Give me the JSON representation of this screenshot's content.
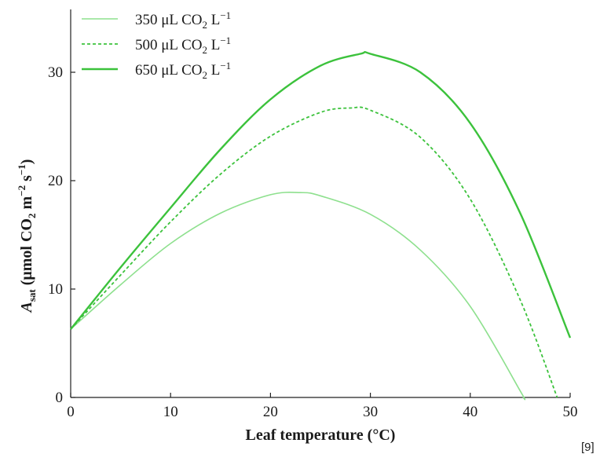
{
  "chart_data": {
    "type": "line",
    "xlabel": "Leaf temperature (°C)",
    "ylabel_main": "A",
    "ylabel_sub": "sat",
    "ylabel_rest_1": " (μmol CO",
    "ylabel_sub2": "2",
    "ylabel_rest_2": " m",
    "ylabel_sup1": "−2",
    "ylabel_rest_3": " s",
    "ylabel_sup2": "−1",
    "ylabel_rest_4": ")",
    "xlim": [
      0,
      50
    ],
    "ylim": [
      0,
      35
    ],
    "xticks": [
      0,
      10,
      20,
      30,
      40,
      50
    ],
    "yticks": [
      0,
      10,
      20,
      30
    ],
    "xtick_labels": [
      "0",
      "10",
      "20",
      "30",
      "40",
      "50"
    ],
    "ytick_labels": [
      "0",
      "10",
      "20",
      "30"
    ],
    "grid": false,
    "legend_position": "top-left",
    "series": [
      {
        "name": "350 μL CO2 L−1",
        "legend_main": "350 μL CO",
        "legend_sub": "2",
        "legend_unit": " L",
        "legend_sup": "−1",
        "style": "solid-thin",
        "color": "#8ee08e",
        "x": [
          0,
          5,
          10,
          15,
          20,
          23,
          25,
          30,
          35,
          40,
          45,
          45.3
        ],
        "y": [
          6.3,
          10.4,
          14.2,
          17.0,
          18.7,
          18.9,
          18.6,
          16.9,
          13.6,
          8.4,
          0.6,
          0
        ]
      },
      {
        "name": "500 μL CO2 L−1",
        "legend_main": "500 μL CO",
        "legend_sub": "2",
        "legend_unit": " L",
        "legend_sup": "−1",
        "style": "dashed",
        "color": "#3cc23c",
        "x": [
          0,
          5,
          10,
          15,
          20,
          25,
          28,
          30,
          35,
          40,
          45,
          48.7
        ],
        "y": [
          6.3,
          11.3,
          16.2,
          20.6,
          24.1,
          26.3,
          26.7,
          26.5,
          24.0,
          18.3,
          9.0,
          0
        ]
      },
      {
        "name": "650 μL CO2 L−1",
        "legend_main": "650 μL CO",
        "legend_sub": "2",
        "legend_unit": " L",
        "legend_sup": "−1",
        "style": "solid-thick",
        "color": "#3cc23c",
        "x": [
          0,
          5,
          10,
          15,
          20,
          25,
          29,
          30,
          35,
          40,
          45,
          50
        ],
        "y": [
          6.3,
          12.0,
          17.5,
          22.9,
          27.5,
          30.6,
          31.7,
          31.7,
          30.0,
          25.3,
          17.0,
          5.5
        ]
      }
    ]
  },
  "reference_label": "[9]"
}
